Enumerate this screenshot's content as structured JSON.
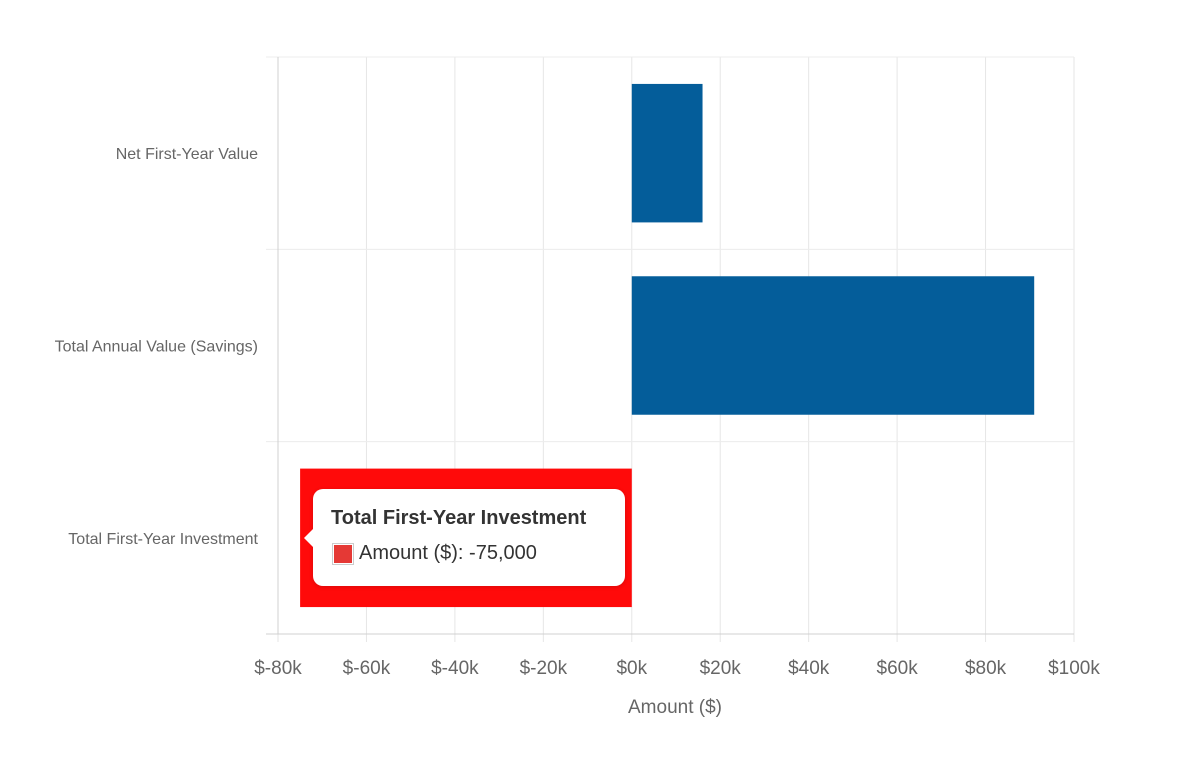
{
  "chart_data": {
    "type": "bar",
    "orientation": "horizontal",
    "categories": [
      "Net First-Year Value",
      "Total Annual Value (Savings)",
      "Total First-Year Investment"
    ],
    "series": [
      {
        "name": "Amount ($)",
        "values": [
          16000,
          91000,
          -75000
        ],
        "colors": [
          "#045d9a",
          "#045d9a",
          "#ff0a0a"
        ]
      }
    ],
    "xlabel": "Amount ($)",
    "ylabel": "",
    "xlim": [
      -80000,
      100000
    ],
    "x_ticks": [
      -80000,
      -60000,
      -40000,
      -20000,
      0,
      20000,
      40000,
      60000,
      80000,
      100000
    ],
    "x_tick_labels": [
      "$-80k",
      "$-60k",
      "$-40k",
      "$-20k",
      "$0k",
      "$20k",
      "$40k",
      "$60k",
      "$80k",
      "$100k"
    ],
    "grid": true,
    "legend": "none",
    "tooltip": {
      "title": "Total First-Year Investment",
      "text": "Amount ($): -75,000",
      "swatch_color": "#e53935"
    }
  }
}
